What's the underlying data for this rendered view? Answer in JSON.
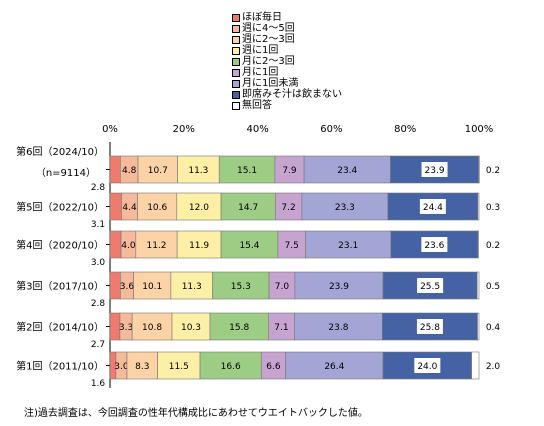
{
  "chart_data": {
    "type": "bar",
    "stacked": true,
    "orientation": "horizontal",
    "xlim": [
      0,
      100
    ],
    "xticks": [
      "0%",
      "20%",
      "40%",
      "60%",
      "80%",
      "100%"
    ],
    "grid": false,
    "legend_position": "top",
    "categories": [
      "第6回（2024/10）\n（n=9114）",
      "第5回（2022/10）",
      "第4回（2020/10）",
      "第3回（2017/10）",
      "第2回（2014/10）",
      "第1回（2011/10）"
    ],
    "series": [
      {
        "name": "ほぼ毎日",
        "color": "#ee7b6d",
        "values": [
          2.8,
          3.1,
          3.0,
          2.8,
          2.7,
          1.6
        ]
      },
      {
        "name": "週に4～5回",
        "color": "#f5b99b",
        "values": [
          4.8,
          4.4,
          4.0,
          3.6,
          3.3,
          3.0
        ]
      },
      {
        "name": "週に2～3回",
        "color": "#fbd3a7",
        "values": [
          10.7,
          10.6,
          11.2,
          10.1,
          10.8,
          8.3
        ]
      },
      {
        "name": "週に1回",
        "color": "#fdf0a6",
        "values": [
          11.3,
          12.0,
          11.9,
          11.3,
          10.3,
          11.5
        ]
      },
      {
        "name": "月に2～3回",
        "color": "#9dcd85",
        "values": [
          15.1,
          14.7,
          15.4,
          15.3,
          15.8,
          16.6
        ]
      },
      {
        "name": "月に1回",
        "color": "#c7a4cf",
        "values": [
          7.9,
          7.2,
          7.5,
          7.0,
          7.1,
          6.6
        ]
      },
      {
        "name": "月に1回未満",
        "color": "#a3a5d5",
        "values": [
          23.4,
          23.3,
          23.1,
          23.9,
          23.8,
          26.4
        ]
      },
      {
        "name": "即席みそ汁は飲まない",
        "color": "#4462a4",
        "values": [
          23.9,
          24.4,
          23.6,
          25.5,
          25.8,
          24.0
        ]
      },
      {
        "name": "無回答",
        "color": "#ffffff",
        "values": [
          0.2,
          0.3,
          0.2,
          0.5,
          0.4,
          2.0
        ]
      }
    ]
  },
  "note": "注)過去調査は、今回調査の性年代構成比にあわせてウエイトバックした値。"
}
